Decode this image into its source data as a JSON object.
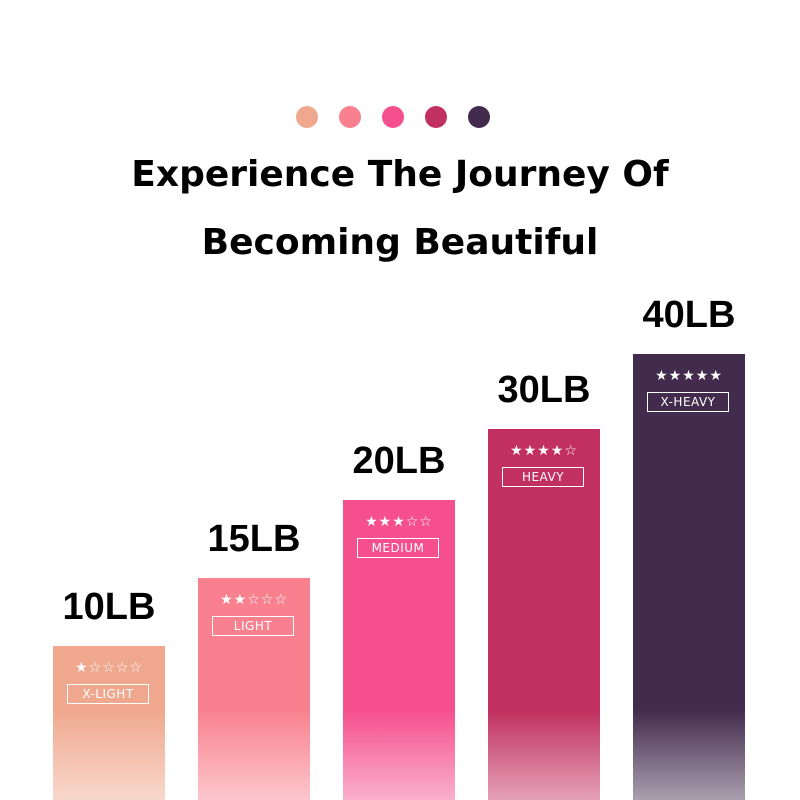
{
  "colors": [
    "#efa88e",
    "#f9818f",
    "#f5508d",
    "#c13060",
    "#432b4d"
  ],
  "title_line1": "Experience The Journey Of",
  "title_line2": "Becoming Beautiful",
  "bands": [
    {
      "weight": "10LB",
      "level": "X-LIGHT",
      "stars": "★☆☆☆☆",
      "rating": 1,
      "color": "#efa88e"
    },
    {
      "weight": "15LB",
      "level": "LIGHT",
      "stars": "★★☆☆☆",
      "rating": 2,
      "color": "#f9818f"
    },
    {
      "weight": "20LB",
      "level": "MEDIUM",
      "stars": "★★★☆☆",
      "rating": 3,
      "color": "#f5508d"
    },
    {
      "weight": "30LB",
      "level": "HEAVY",
      "stars": "★★★★☆",
      "rating": 4,
      "color": "#c13060"
    },
    {
      "weight": "40LB",
      "level": "X-HEAVY",
      "stars": "★★★★★",
      "rating": 5,
      "color": "#432b4d"
    }
  ]
}
